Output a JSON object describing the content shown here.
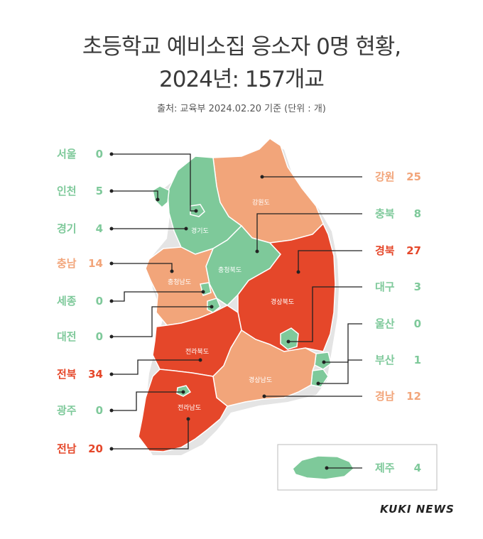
{
  "header": {
    "title_line1": "초등학교 예비소집 응소자 0명 현황,",
    "title_line2": "2024년: 157개교",
    "source": "출처: 교육부 2024.02.20 기준 (단위 : 개)"
  },
  "colors": {
    "low": "#7ec99a",
    "mid": "#f2a57a",
    "high": "#e5472a"
  },
  "regions": [
    {
      "key": "seoul",
      "name": "서울",
      "value": "0",
      "level": "low"
    },
    {
      "key": "incheon",
      "name": "인천",
      "value": "5",
      "level": "low"
    },
    {
      "key": "gyeonggi",
      "name": "경기",
      "value": "4",
      "level": "low"
    },
    {
      "key": "chungnam",
      "name": "충남",
      "value": "14",
      "level": "mid"
    },
    {
      "key": "sejong",
      "name": "세종",
      "value": "0",
      "level": "low"
    },
    {
      "key": "daejeon",
      "name": "대전",
      "value": "0",
      "level": "low"
    },
    {
      "key": "jeonbuk",
      "name": "전북",
      "value": "34",
      "level": "high"
    },
    {
      "key": "gwangju",
      "name": "광주",
      "value": "0",
      "level": "low"
    },
    {
      "key": "jeonnam",
      "name": "전남",
      "value": "20",
      "level": "high"
    },
    {
      "key": "gangwon",
      "name": "강원",
      "value": "25",
      "level": "mid"
    },
    {
      "key": "chungbuk",
      "name": "충북",
      "value": "8",
      "level": "low"
    },
    {
      "key": "gyeongbuk",
      "name": "경북",
      "value": "27",
      "level": "high"
    },
    {
      "key": "daegu",
      "name": "대구",
      "value": "3",
      "level": "low"
    },
    {
      "key": "ulsan",
      "name": "울산",
      "value": "0",
      "level": "low"
    },
    {
      "key": "busan",
      "name": "부산",
      "value": "1",
      "level": "low"
    },
    {
      "key": "gyeongnam",
      "name": "경남",
      "value": "12",
      "level": "mid"
    },
    {
      "key": "jeju",
      "name": "제주",
      "value": "4",
      "level": "low"
    }
  ],
  "map_labels": {
    "gyeonggi": "경기도",
    "gangwon": "강원도",
    "chungbuk": "충청북도",
    "chungnam": "충청남도",
    "gyeongbuk": "경상북도",
    "jeonbuk": "전라북도",
    "gyeongnam": "경상남도",
    "jeonnam": "전라남도"
  },
  "logo": "KUKI NEWS"
}
